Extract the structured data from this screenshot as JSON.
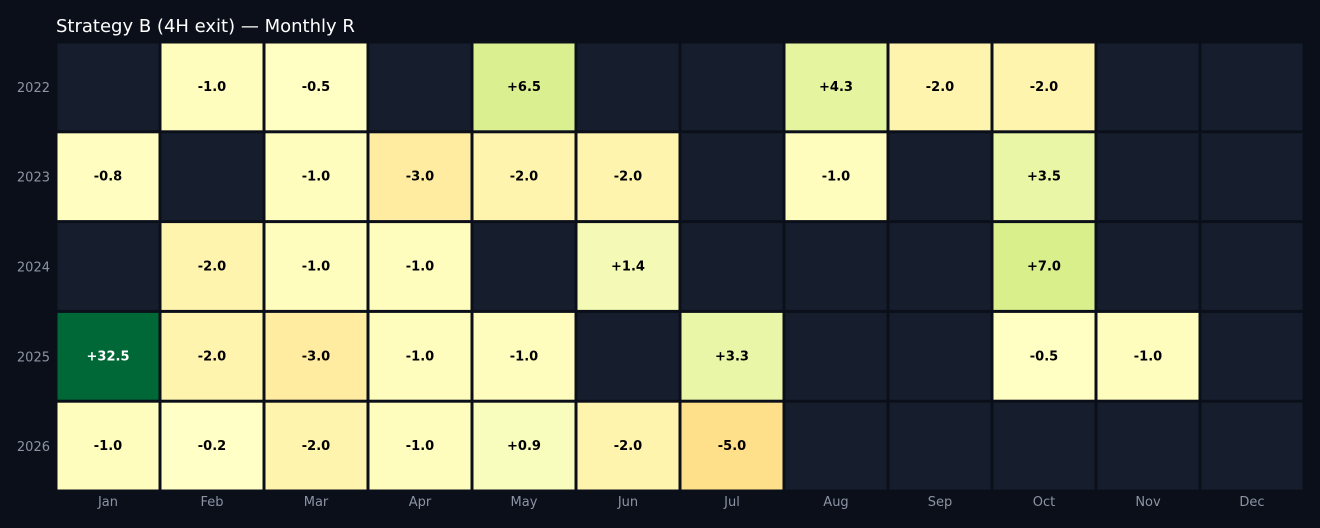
{
  "chart_data": {
    "type": "heatmap",
    "title": "Strategy B (4H exit) — Monthly R",
    "xlabel": "",
    "ylabel": "",
    "months": [
      "Jan",
      "Feb",
      "Mar",
      "Apr",
      "May",
      "Jun",
      "Jul",
      "Aug",
      "Sep",
      "Oct",
      "Nov",
      "Dec"
    ],
    "years": [
      "2022",
      "2023",
      "2024",
      "2025",
      "2026"
    ],
    "values": [
      [
        null,
        -1.0,
        -0.5,
        null,
        6.5,
        null,
        null,
        4.3,
        -2.0,
        -2.0,
        null,
        null
      ],
      [
        -0.8,
        null,
        -1.0,
        -3.0,
        -2.0,
        -2.0,
        null,
        -1.0,
        null,
        3.5,
        null,
        null
      ],
      [
        null,
        -2.0,
        -1.0,
        -1.0,
        null,
        1.4,
        null,
        null,
        null,
        7.0,
        null,
        null
      ],
      [
        32.5,
        -2.0,
        -3.0,
        -1.0,
        -1.0,
        null,
        3.3,
        null,
        null,
        -0.5,
        -1.0,
        null
      ],
      [
        -1.0,
        -0.2,
        -2.0,
        -1.0,
        0.9,
        -2.0,
        -5.0,
        null,
        null,
        null,
        null,
        null
      ]
    ],
    "labels": [
      [
        null,
        "-1.0",
        "-0.5",
        null,
        "+6.5",
        null,
        null,
        "+4.3",
        "-2.0",
        "-2.0",
        null,
        null
      ],
      [
        "-0.8",
        null,
        "-1.0",
        "-3.0",
        "-2.0",
        "-2.0",
        null,
        "-1.0",
        null,
        "+3.5",
        null,
        null
      ],
      [
        null,
        "-2.0",
        "-1.0",
        "-1.0",
        null,
        "+1.4",
        null,
        null,
        null,
        "+7.0",
        null,
        null
      ],
      [
        "+32.5",
        "-2.0",
        "-3.0",
        "-1.0",
        "-1.0",
        null,
        "+3.3",
        null,
        null,
        "-0.5",
        "-1.0",
        null
      ],
      [
        "-1.0",
        "-0.2",
        "-2.0",
        "-1.0",
        "+0.9",
        "-2.0",
        "-5.0",
        null,
        null,
        null,
        null,
        null
      ]
    ],
    "colors": {
      "background": "#0b0f19",
      "empty_cell": "#161e2e",
      "grid_line": "#0b0f19",
      "title": "#ffffff",
      "tick": "#8b93a5",
      "label_dark": "#000000",
      "label_light": "#ffffff"
    }
  }
}
